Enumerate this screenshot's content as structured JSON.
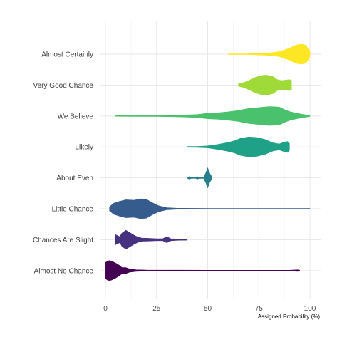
{
  "chart_data": {
    "type": "violin",
    "title": "",
    "xlabel": "Assigned Probability (%)",
    "ylabel": "",
    "xlim": [
      -4,
      104
    ],
    "xticks": [
      0,
      25,
      50,
      75,
      100
    ],
    "xtick_labels": [
      "0",
      "25",
      "50",
      "75",
      "100"
    ],
    "grid": true,
    "legend": "none",
    "categories": [
      "Almost Certainly",
      "Very Good Chance",
      "We Believe",
      "Likely",
      "About Even",
      "Little Chance",
      "Chances Are Slight",
      "Almost No Chance"
    ],
    "series": [
      {
        "category": "Almost Certainly",
        "color": "#fde725",
        "density": [
          [
            60,
            0.02
          ],
          [
            70,
            0.04
          ],
          [
            80,
            0.12
          ],
          [
            85,
            0.25
          ],
          [
            88,
            0.45
          ],
          [
            90,
            0.6
          ],
          [
            92,
            0.8
          ],
          [
            94,
            0.95
          ],
          [
            96,
            1.0
          ],
          [
            98,
            0.9
          ],
          [
            99,
            0.6
          ],
          [
            100,
            0.3
          ]
        ]
      },
      {
        "category": "Very Good Chance",
        "color": "#a0da39",
        "density": [
          [
            65,
            0.12
          ],
          [
            67,
            0.2
          ],
          [
            70,
            0.45
          ],
          [
            73,
            0.75
          ],
          [
            76,
            0.95
          ],
          [
            79,
            1.0
          ],
          [
            82,
            0.85
          ],
          [
            84,
            0.55
          ],
          [
            86,
            0.45
          ],
          [
            88,
            0.5
          ],
          [
            90,
            0.55
          ],
          [
            91,
            0.45
          ]
        ]
      },
      {
        "category": "We Believe",
        "color": "#4ac16d",
        "density": [
          [
            5,
            0.03
          ],
          [
            15,
            0.04
          ],
          [
            25,
            0.05
          ],
          [
            35,
            0.08
          ],
          [
            45,
            0.15
          ],
          [
            50,
            0.28
          ],
          [
            55,
            0.32
          ],
          [
            60,
            0.42
          ],
          [
            65,
            0.55
          ],
          [
            70,
            0.75
          ],
          [
            75,
            0.85
          ],
          [
            80,
            0.95
          ],
          [
            85,
            0.9
          ],
          [
            88,
            0.6
          ],
          [
            90,
            0.45
          ],
          [
            93,
            0.3
          ],
          [
            96,
            0.18
          ],
          [
            100,
            0.05
          ]
        ]
      },
      {
        "category": "Likely",
        "color": "#1fa187",
        "density": [
          [
            40,
            0.04
          ],
          [
            45,
            0.05
          ],
          [
            50,
            0.1
          ],
          [
            55,
            0.25
          ],
          [
            60,
            0.45
          ],
          [
            63,
            0.6
          ],
          [
            66,
            0.85
          ],
          [
            70,
            1.0
          ],
          [
            74,
            0.95
          ],
          [
            78,
            0.75
          ],
          [
            82,
            0.4
          ],
          [
            85,
            0.3
          ],
          [
            87,
            0.45
          ],
          [
            89,
            0.55
          ],
          [
            90,
            0.35
          ]
        ]
      },
      {
        "category": "About Even",
        "color": "#277f8e",
        "density": [
          [
            40,
            0.04
          ],
          [
            41,
            0.12
          ],
          [
            42,
            0.05
          ],
          [
            44,
            0.05
          ],
          [
            45,
            0.12
          ],
          [
            46,
            0.05
          ],
          [
            48,
            0.06
          ],
          [
            49,
            0.45
          ],
          [
            50,
            1.0
          ],
          [
            51,
            0.45
          ],
          [
            52,
            0.12
          ]
        ]
      },
      {
        "category": "Little Chance",
        "color": "#365c8d",
        "density": [
          [
            2,
            0.2
          ],
          [
            4,
            0.55
          ],
          [
            7,
            0.75
          ],
          [
            10,
            0.9
          ],
          [
            14,
            0.85
          ],
          [
            17,
            1.0
          ],
          [
            20,
            0.95
          ],
          [
            23,
            0.6
          ],
          [
            26,
            0.3
          ],
          [
            30,
            0.1
          ],
          [
            35,
            0.05
          ],
          [
            50,
            0.03
          ],
          [
            75,
            0.02
          ],
          [
            100,
            0.02
          ]
        ]
      },
      {
        "category": "Chances Are Slight",
        "color": "#46327e",
        "density": [
          [
            5,
            0.5
          ],
          [
            7,
            0.3
          ],
          [
            8,
            0.65
          ],
          [
            10,
            0.95
          ],
          [
            12,
            0.7
          ],
          [
            14,
            0.45
          ],
          [
            16,
            0.25
          ],
          [
            18,
            0.15
          ],
          [
            20,
            0.15
          ],
          [
            25,
            0.1
          ],
          [
            28,
            0.1
          ],
          [
            30,
            0.3
          ],
          [
            32,
            0.1
          ],
          [
            36,
            0.06
          ],
          [
            40,
            0.05
          ]
        ]
      },
      {
        "category": "Almost No Chance",
        "color": "#440154",
        "density": [
          [
            0,
            0.8
          ],
          [
            1,
            0.95
          ],
          [
            2,
            1.0
          ],
          [
            3,
            0.95
          ],
          [
            5,
            0.75
          ],
          [
            7,
            0.5
          ],
          [
            8,
            0.3
          ],
          [
            10,
            0.3
          ],
          [
            12,
            0.15
          ],
          [
            15,
            0.08
          ],
          [
            20,
            0.05
          ],
          [
            30,
            0.04
          ],
          [
            50,
            0.03
          ],
          [
            70,
            0.03
          ],
          [
            90,
            0.03
          ],
          [
            94,
            0.08
          ],
          [
            95,
            0.04
          ]
        ]
      }
    ]
  }
}
